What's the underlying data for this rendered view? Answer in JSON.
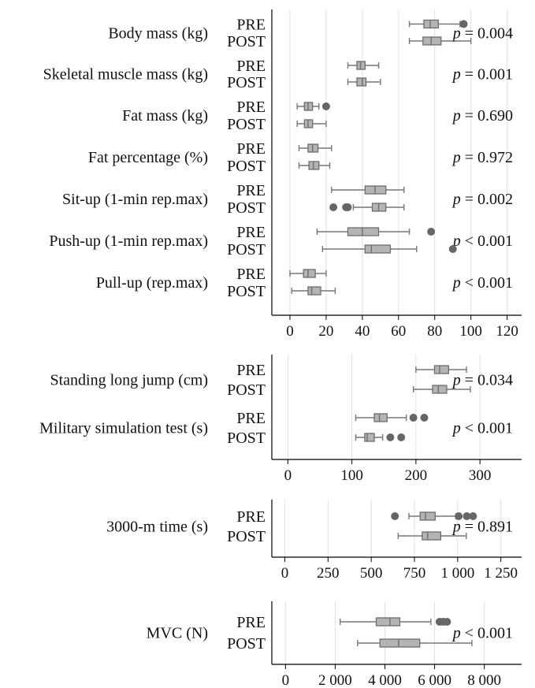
{
  "chart_data": [
    {
      "type": "boxplot",
      "xlim": [
        -10,
        128
      ],
      "xticks": [
        0,
        20,
        40,
        60,
        80,
        100,
        120
      ],
      "xtick_labels": [
        "0",
        "20",
        "40",
        "60",
        "80",
        "100",
        "120"
      ],
      "grid": "vertical",
      "variables": [
        {
          "label": "Body mass (kg)",
          "p": "= 0.004",
          "groups": [
            {
              "name": "PRE",
              "whisker_low": 66,
              "q1": 74,
              "median": 77.5,
              "q3": 82,
              "whisker_high": 94,
              "outliers": [
                96
              ]
            },
            {
              "name": "POST",
              "whisker_low": 66,
              "q1": 73.5,
              "median": 78,
              "q3": 83.5,
              "whisker_high": 100,
              "outliers": []
            }
          ]
        },
        {
          "label": "Skeletal muscle mass (kg)",
          "p": "= 0.001",
          "groups": [
            {
              "name": "PRE",
              "whisker_low": 32,
              "q1": 37,
              "median": 39,
              "q3": 41.5,
              "whisker_high": 49,
              "outliers": []
            },
            {
              "name": "POST",
              "whisker_low": 32,
              "q1": 37,
              "median": 40,
              "q3": 42,
              "whisker_high": 50,
              "outliers": []
            }
          ]
        },
        {
          "label": "Fat mass (kg)",
          "p": "= 0.690",
          "groups": [
            {
              "name": "PRE",
              "whisker_low": 4,
              "q1": 8,
              "median": 10,
              "q3": 12.5,
              "whisker_high": 16,
              "outliers": [
                20
              ]
            },
            {
              "name": "POST",
              "whisker_low": 4,
              "q1": 8,
              "median": 10,
              "q3": 12.5,
              "whisker_high": 20,
              "outliers": []
            }
          ]
        },
        {
          "label": "Fat percentage (%)",
          "p": "= 0.972",
          "groups": [
            {
              "name": "PRE",
              "whisker_low": 5,
              "q1": 10,
              "median": 12.5,
              "q3": 15.5,
              "whisker_high": 23,
              "outliers": []
            },
            {
              "name": "POST",
              "whisker_low": 5,
              "q1": 10.5,
              "median": 13,
              "q3": 16,
              "whisker_high": 22,
              "outliers": []
            }
          ]
        },
        {
          "label": "Sit-up (1-min rep.max)",
          "p": "= 0.002",
          "groups": [
            {
              "name": "PRE",
              "whisker_low": 23,
              "q1": 41.5,
              "median": 47,
              "q3": 53,
              "whisker_high": 63,
              "outliers": []
            },
            {
              "name": "POST",
              "whisker_low": 35,
              "q1": 45.5,
              "median": 49,
              "q3": 53,
              "whisker_high": 63,
              "outliers": [
                24,
                31,
                32
              ]
            }
          ]
        },
        {
          "label": "Push-up (1-min rep.max)",
          "p": "< 0.001",
          "groups": [
            {
              "name": "PRE",
              "whisker_low": 15,
              "q1": 32,
              "median": 40,
              "q3": 49,
              "whisker_high": 66,
              "outliers": [
                78
              ]
            },
            {
              "name": "POST",
              "whisker_low": 18,
              "q1": 41.5,
              "median": 45,
              "q3": 55.5,
              "whisker_high": 70,
              "outliers": [
                90
              ]
            }
          ]
        },
        {
          "label": "Pull-up (rep.max)",
          "p": "< 0.001",
          "groups": [
            {
              "name": "PRE",
              "whisker_low": 0,
              "q1": 7.5,
              "median": 10,
              "q3": 14,
              "whisker_high": 20,
              "outliers": []
            },
            {
              "name": "POST",
              "whisker_low": 1,
              "q1": 10,
              "median": 12,
              "q3": 17,
              "whisker_high": 25,
              "outliers": []
            }
          ]
        }
      ]
    },
    {
      "type": "boxplot",
      "xlim": [
        -25,
        365
      ],
      "xticks": [
        0,
        100,
        200,
        300
      ],
      "xtick_labels": [
        "0",
        "100",
        "200",
        "300"
      ],
      "grid": "vertical",
      "variables": [
        {
          "label": "Standing long jump (cm)",
          "p": "= 0.034",
          "groups": [
            {
              "name": "PRE",
              "whisker_low": 200,
              "q1": 229,
              "median": 237,
              "q3": 251,
              "whisker_high": 279,
              "outliers": []
            },
            {
              "name": "POST",
              "whisker_low": 196,
              "q1": 226,
              "median": 235,
              "q3": 248,
              "whisker_high": 285,
              "outliers": []
            }
          ]
        },
        {
          "label": "Military simulation test (s)",
          "p": "< 0.001",
          "groups": [
            {
              "name": "PRE",
              "whisker_low": 106,
              "q1": 135,
              "median": 143,
              "q3": 155,
              "whisker_high": 185,
              "outliers": [
                196,
                213
              ]
            },
            {
              "name": "POST",
              "whisker_low": 106,
              "q1": 120,
              "median": 124,
              "q3": 135,
              "whisker_high": 148,
              "outliers": [
                160,
                177
              ]
            }
          ]
        }
      ]
    },
    {
      "type": "boxplot",
      "xlim": [
        -75,
        1370
      ],
      "xticks": [
        0,
        250,
        500,
        750,
        1000,
        1250
      ],
      "xtick_labels": [
        "0",
        "250",
        "500",
        "750",
        "1 000",
        "1 250"
      ],
      "grid": "vertical",
      "variables": [
        {
          "label": "3000-m time (s)",
          "p": "= 0.891",
          "groups": [
            {
              "name": "PRE",
              "whisker_low": 718,
              "q1": 783,
              "median": 814,
              "q3": 870,
              "whisker_high": 990,
              "outliers": [
                637,
                1006,
                1053,
                1089
              ]
            },
            {
              "name": "POST",
              "whisker_low": 656,
              "q1": 795,
              "median": 826,
              "q3": 902,
              "whisker_high": 1050,
              "outliers": []
            }
          ]
        }
      ]
    },
    {
      "type": "boxplot",
      "xlim": [
        -550,
        9500
      ],
      "xticks": [
        0,
        2000,
        4000,
        6000,
        8000
      ],
      "xtick_labels": [
        "0",
        "2 000",
        "4 000",
        "6 000",
        "8 000"
      ],
      "grid": "vertical",
      "variables": [
        {
          "label": "MVC (N)",
          "p": "< 0.001",
          "groups": [
            {
              "name": "PRE",
              "whisker_low": 2200,
              "q1": 3650,
              "median": 4200,
              "q3": 4600,
              "whisker_high": 5850,
              "outliers": [
                6200,
                6350,
                6500
              ]
            },
            {
              "name": "POST",
              "whisker_low": 2900,
              "q1": 3800,
              "median": 4550,
              "q3": 5400,
              "whisker_high": 7500,
              "outliers": []
            }
          ]
        }
      ]
    }
  ]
}
